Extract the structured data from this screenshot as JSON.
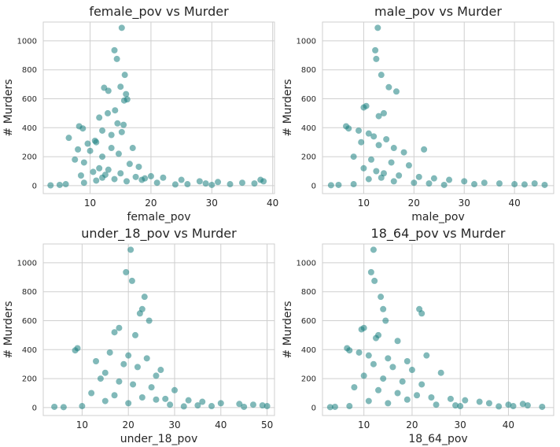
{
  "colors": {
    "marker": "#1a8080",
    "grid": "#cfcfcf",
    "axis_text": "#262626"
  },
  "chart_data": [
    {
      "type": "scatter",
      "title": "female_pov vs Murder",
      "xlabel": "female_pov",
      "ylabel": "# Murders",
      "xlim": [
        2.3,
        40.3
      ],
      "ylim": [
        -55,
        1130
      ],
      "xticks": [
        10,
        20,
        30,
        40
      ],
      "yticks": [
        0,
        200,
        400,
        600,
        800,
        1000
      ],
      "grid": true,
      "points": [
        [
          15.2,
          1090
        ],
        [
          14.0,
          935
        ],
        [
          14.4,
          875
        ],
        [
          15.7,
          765
        ],
        [
          15.0,
          683
        ],
        [
          12.3,
          676
        ],
        [
          15.9,
          632
        ],
        [
          16.1,
          596
        ],
        [
          15.6,
          588
        ],
        [
          13.0,
          655
        ],
        [
          14.1,
          520
        ],
        [
          12.9,
          500
        ],
        [
          11.5,
          470
        ],
        [
          14.5,
          430
        ],
        [
          15.5,
          420
        ],
        [
          8.2,
          410
        ],
        [
          8.8,
          395
        ],
        [
          12.0,
          380
        ],
        [
          15.2,
          370
        ],
        [
          13.5,
          350
        ],
        [
          10.8,
          310
        ],
        [
          6.5,
          330
        ],
        [
          11.0,
          300
        ],
        [
          9.6,
          290
        ],
        [
          13.5,
          260
        ],
        [
          8.0,
          250
        ],
        [
          10.0,
          240
        ],
        [
          17.0,
          260
        ],
        [
          14.7,
          220
        ],
        [
          12.0,
          200
        ],
        [
          7.5,
          180
        ],
        [
          9.0,
          160
        ],
        [
          16.5,
          150
        ],
        [
          18.0,
          130
        ],
        [
          11.5,
          120
        ],
        [
          13.0,
          110
        ],
        [
          10.5,
          95
        ],
        [
          15.0,
          85
        ],
        [
          12.5,
          75
        ],
        [
          8.5,
          70
        ],
        [
          20.0,
          65
        ],
        [
          22.0,
          55
        ],
        [
          19.0,
          50
        ],
        [
          25.0,
          40
        ],
        [
          28.0,
          30
        ],
        [
          31.0,
          25
        ],
        [
          35.0,
          20
        ],
        [
          38.0,
          40
        ],
        [
          38.5,
          30
        ],
        [
          37.0,
          15
        ],
        [
          33.0,
          10
        ],
        [
          30.0,
          5
        ],
        [
          24.0,
          8
        ],
        [
          5.0,
          5
        ],
        [
          3.5,
          2
        ],
        [
          6.0,
          10
        ],
        [
          9.0,
          20
        ],
        [
          16.0,
          30
        ],
        [
          18.5,
          40
        ],
        [
          21.0,
          20
        ],
        [
          26.0,
          10
        ],
        [
          29.0,
          15
        ],
        [
          14.0,
          45
        ],
        [
          17.5,
          60
        ],
        [
          12.0,
          55
        ],
        [
          11.0,
          35
        ]
      ]
    },
    {
      "type": "scatter",
      "title": "male_pov vs Murder",
      "xlabel": "male_pov",
      "ylabel": "# Murders",
      "xlim": [
        1.8,
        47.8
      ],
      "ylim": [
        -55,
        1130
      ],
      "xticks": [
        10,
        20,
        30,
        40
      ],
      "yticks": [
        0,
        200,
        400,
        600,
        800,
        1000
      ],
      "grid": true,
      "points": [
        [
          12.8,
          1090
        ],
        [
          12.3,
          935
        ],
        [
          12.5,
          875
        ],
        [
          13.5,
          765
        ],
        [
          15.0,
          680
        ],
        [
          16.5,
          650
        ],
        [
          10.5,
          550
        ],
        [
          10.0,
          540
        ],
        [
          14.0,
          500
        ],
        [
          13.0,
          480
        ],
        [
          6.5,
          410
        ],
        [
          7.0,
          395
        ],
        [
          9.0,
          380
        ],
        [
          11.0,
          360
        ],
        [
          12.0,
          340
        ],
        [
          14.5,
          320
        ],
        [
          9.5,
          300
        ],
        [
          13.0,
          280
        ],
        [
          16.0,
          260
        ],
        [
          22.0,
          250
        ],
        [
          18.0,
          230
        ],
        [
          8.0,
          200
        ],
        [
          11.5,
          180
        ],
        [
          15.5,
          160
        ],
        [
          19.0,
          140
        ],
        [
          10.0,
          120
        ],
        [
          12.5,
          100
        ],
        [
          14.0,
          85
        ],
        [
          17.0,
          70
        ],
        [
          21.0,
          60
        ],
        [
          24.0,
          50
        ],
        [
          27.0,
          40
        ],
        [
          30.0,
          30
        ],
        [
          34.0,
          20
        ],
        [
          37.0,
          15
        ],
        [
          40.0,
          10
        ],
        [
          44.0,
          15
        ],
        [
          46.0,
          5
        ],
        [
          42.0,
          8
        ],
        [
          32.0,
          10
        ],
        [
          26.0,
          5
        ],
        [
          5.0,
          5
        ],
        [
          3.5,
          3
        ],
        [
          8.0,
          10
        ],
        [
          20.0,
          20
        ],
        [
          23.0,
          15
        ],
        [
          16.0,
          30
        ],
        [
          11.0,
          45
        ],
        [
          13.5,
          55
        ]
      ]
    },
    {
      "type": "scatter",
      "title": "under_18_pov vs Murder",
      "xlabel": "under_18_pov",
      "ylabel": "# Murders",
      "xlim": [
        1.6,
        51.6
      ],
      "ylim": [
        -55,
        1130
      ],
      "xticks": [
        10,
        20,
        30,
        40,
        50
      ],
      "yticks": [
        0,
        200,
        400,
        600,
        800,
        1000
      ],
      "grid": true,
      "points": [
        [
          20.5,
          1090
        ],
        [
          19.5,
          935
        ],
        [
          20.8,
          875
        ],
        [
          23.5,
          765
        ],
        [
          23.0,
          680
        ],
        [
          22.5,
          650
        ],
        [
          24.5,
          600
        ],
        [
          18.0,
          550
        ],
        [
          17.0,
          520
        ],
        [
          21.5,
          500
        ],
        [
          9.0,
          410
        ],
        [
          8.5,
          395
        ],
        [
          16.0,
          380
        ],
        [
          20.0,
          360
        ],
        [
          24.0,
          340
        ],
        [
          13.0,
          320
        ],
        [
          19.0,
          300
        ],
        [
          22.0,
          280
        ],
        [
          27.0,
          260
        ],
        [
          15.0,
          240
        ],
        [
          26.0,
          220
        ],
        [
          14.0,
          200
        ],
        [
          18.0,
          180
        ],
        [
          21.0,
          160
        ],
        [
          25.0,
          140
        ],
        [
          30.0,
          120
        ],
        [
          12.0,
          100
        ],
        [
          17.0,
          85
        ],
        [
          23.0,
          70
        ],
        [
          28.0,
          60
        ],
        [
          33.0,
          50
        ],
        [
          36.0,
          40
        ],
        [
          40.0,
          30
        ],
        [
          44.0,
          25
        ],
        [
          47.0,
          20
        ],
        [
          49.0,
          15
        ],
        [
          50.0,
          10
        ],
        [
          45.0,
          5
        ],
        [
          38.0,
          10
        ],
        [
          32.0,
          8
        ],
        [
          4.0,
          5
        ],
        [
          6.0,
          3
        ],
        [
          10.0,
          10
        ],
        [
          29.0,
          20
        ],
        [
          35.0,
          15
        ],
        [
          20.0,
          30
        ],
        [
          15.0,
          45
        ],
        [
          26.0,
          55
        ]
      ]
    },
    {
      "type": "scatter",
      "title": "18_64_pov vs Murder",
      "xlabel": "18_64_pov",
      "ylabel": "# Murders",
      "xlim": [
        1.4,
        49.4
      ],
      "ylim": [
        -55,
        1130
      ],
      "xticks": [
        10,
        20,
        30,
        40
      ],
      "yticks": [
        0,
        200,
        400,
        600,
        800,
        1000
      ],
      "grid": true,
      "points": [
        [
          12.0,
          1090
        ],
        [
          11.5,
          935
        ],
        [
          12.2,
          875
        ],
        [
          13.5,
          765
        ],
        [
          14.0,
          680
        ],
        [
          21.5,
          680
        ],
        [
          22.0,
          650
        ],
        [
          14.5,
          600
        ],
        [
          10.0,
          550
        ],
        [
          9.5,
          540
        ],
        [
          13.0,
          500
        ],
        [
          12.5,
          480
        ],
        [
          17.0,
          460
        ],
        [
          6.5,
          410
        ],
        [
          7.0,
          395
        ],
        [
          9.0,
          380
        ],
        [
          11.0,
          360
        ],
        [
          23.0,
          360
        ],
        [
          15.0,
          340
        ],
        [
          19.0,
          320
        ],
        [
          12.0,
          300
        ],
        [
          16.0,
          280
        ],
        [
          20.0,
          260
        ],
        [
          26.0,
          240
        ],
        [
          10.0,
          220
        ],
        [
          14.0,
          200
        ],
        [
          18.0,
          180
        ],
        [
          22.0,
          160
        ],
        [
          8.0,
          140
        ],
        [
          13.0,
          120
        ],
        [
          17.0,
          100
        ],
        [
          21.0,
          85
        ],
        [
          24.0,
          70
        ],
        [
          28.0,
          60
        ],
        [
          31.0,
          50
        ],
        [
          34.0,
          40
        ],
        [
          36.0,
          30
        ],
        [
          40.0,
          20
        ],
        [
          41.0,
          10
        ],
        [
          43.0,
          25
        ],
        [
          44.0,
          15
        ],
        [
          47.0,
          5
        ],
        [
          38.0,
          8
        ],
        [
          30.0,
          10
        ],
        [
          4.0,
          5
        ],
        [
          3.0,
          3
        ],
        [
          7.0,
          10
        ],
        [
          25.0,
          20
        ],
        [
          29.0,
          15
        ],
        [
          15.0,
          30
        ],
        [
          11.0,
          45
        ],
        [
          19.0,
          55
        ]
      ]
    }
  ]
}
